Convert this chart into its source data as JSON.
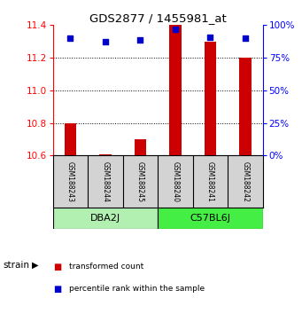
{
  "title": "GDS2877 / 1455981_at",
  "samples": [
    "GSM188243",
    "GSM188244",
    "GSM188245",
    "GSM188240",
    "GSM188241",
    "GSM188242"
  ],
  "groups": [
    {
      "name": "DBA2J",
      "color": "#b2f0b2",
      "indices": [
        0,
        1,
        2
      ]
    },
    {
      "name": "C57BL6J",
      "color": "#44ee44",
      "indices": [
        3,
        4,
        5
      ]
    }
  ],
  "transformed_counts": [
    10.8,
    10.61,
    10.7,
    11.4,
    11.3,
    11.2
  ],
  "percentile_ranks": [
    90,
    87,
    89,
    97,
    91,
    90
  ],
  "ylim_left": [
    10.6,
    11.4
  ],
  "ylim_right": [
    0,
    100
  ],
  "yticks_left": [
    10.6,
    10.8,
    11.0,
    11.2,
    11.4
  ],
  "yticks_right": [
    0,
    25,
    50,
    75,
    100
  ],
  "bar_color": "#CC0000",
  "dot_color": "#0000CC",
  "background_color": "#FFFFFF",
  "sample_box_color": "#D3D3D3",
  "legend_items": [
    {
      "color": "#CC0000",
      "label": "transformed count"
    },
    {
      "color": "#0000CC",
      "label": "percentile rank within the sample"
    }
  ]
}
